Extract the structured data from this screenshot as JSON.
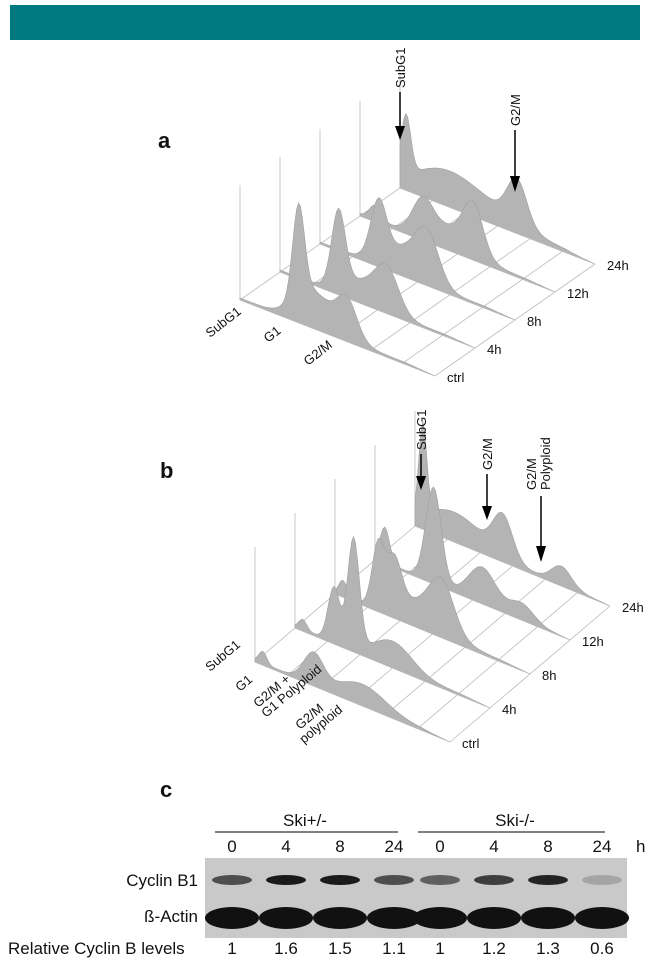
{
  "panel_a": {
    "label": "a",
    "peak_labels": [
      "SubG1",
      "G2/M"
    ],
    "axis_labels": [
      [
        "SubG1"
      ],
      [
        "G1"
      ],
      [
        "G2/M"
      ]
    ],
    "timepoints": [
      "ctrl",
      "4h",
      "8h",
      "12h",
      "24h"
    ]
  },
  "panel_b": {
    "label": "b",
    "peak_labels": [
      [
        "SubG1"
      ],
      [
        "G2/M"
      ],
      [
        "G2/M",
        "Polyploid"
      ]
    ],
    "axis_labels": [
      [
        "SubG1"
      ],
      [
        "G1"
      ],
      [
        "G2/M +",
        "G1 Polyploid"
      ],
      [
        "G2/M",
        "polyploid"
      ]
    ],
    "timepoints": [
      "ctrl",
      "4h",
      "8h",
      "12h",
      "24h"
    ]
  },
  "panel_c": {
    "label": "c",
    "groups": [
      "Ski+/-",
      "Ski-/-"
    ],
    "timepoints": [
      0,
      4,
      8,
      24,
      0,
      4,
      8,
      24
    ],
    "unit": "h",
    "rows": [
      "Cyclin B1",
      "ß-Actin"
    ],
    "relative_label": "Relative Cyclin B levels",
    "relative_values": [
      1,
      1.6,
      1.5,
      1.1,
      1,
      1.2,
      1.3,
      0.6
    ]
  }
}
